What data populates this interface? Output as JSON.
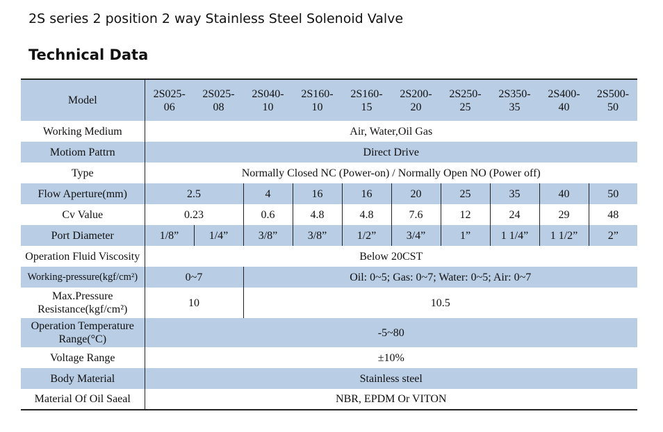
{
  "page": {
    "title": "2S series 2 position 2 way Stainless Steel Solenoid Valve",
    "section": "Technical Data"
  },
  "table": {
    "model_label": "Model",
    "models": [
      {
        "line1": "2S025-",
        "line2": "06"
      },
      {
        "line1": "2S025-",
        "line2": "08"
      },
      {
        "line1": "2S040-",
        "line2": "10"
      },
      {
        "line1": "2S160-",
        "line2": "10"
      },
      {
        "line1": "2S160-",
        "line2": "15"
      },
      {
        "line1": "2S200-",
        "line2": "20"
      },
      {
        "line1": "2S250-",
        "line2": "25"
      },
      {
        "line1": "2S350-",
        "line2": "35"
      },
      {
        "line1": "2S400-",
        "line2": "40"
      },
      {
        "line1": "2S500-",
        "line2": "50"
      }
    ],
    "working_medium": {
      "label": "Working Medium",
      "value": "Air, Water,Oil Gas"
    },
    "motion_pattern": {
      "label": "Motiom Pattrn",
      "value": "Direct Drive"
    },
    "type": {
      "label": "Type",
      "value": "Normally Closed NC (Power-on) / Normally Open NO (Power off)"
    },
    "flow_aperture": {
      "label": "Flow Aperture(mm)",
      "values": [
        "2.5",
        "4",
        "16",
        "16",
        "20",
        "25",
        "35",
        "40",
        "50"
      ]
    },
    "cv_value": {
      "label": "Cv Value",
      "values": [
        "0.23",
        "0.6",
        "4.8",
        "4.8",
        "7.6",
        "12",
        "24",
        "29",
        "48"
      ]
    },
    "port_diameter": {
      "label": "Port Diameter",
      "values": [
        "1/8”",
        "1/4”",
        "3/8”",
        "3/8”",
        "1/2”",
        "3/4”",
        "1”",
        "1 1/4”",
        "1 1/2”",
        "2”"
      ]
    },
    "fluid_viscosity": {
      "label": "Operation Fluid Viscosity",
      "value": "Below 20CST"
    },
    "working_pressure": {
      "label": "Working-pressure(kgf/cm²)",
      "value_small": "0~7",
      "value_rest": "Oil: 0~5; Gas: 0~7; Water: 0~5; Air: 0~7"
    },
    "max_pressure": {
      "label_line1": "Max.Pressure",
      "label_line2": "Resistance(kgf/cm²)",
      "value_small": "10",
      "value_rest": "10.5"
    },
    "operation_temperature": {
      "label_line1": "Operation Temperature",
      "label_line2": "Range(°C)",
      "value": "-5~80"
    },
    "voltage_range": {
      "label": "Voltage Range",
      "value": "±10%"
    },
    "body_material": {
      "label": "Body Material",
      "value": "Stainless steel"
    },
    "oil_seal_material": {
      "label": "Material Of Oil Saeal",
      "value": "NBR, EPDM Or VITON"
    }
  }
}
